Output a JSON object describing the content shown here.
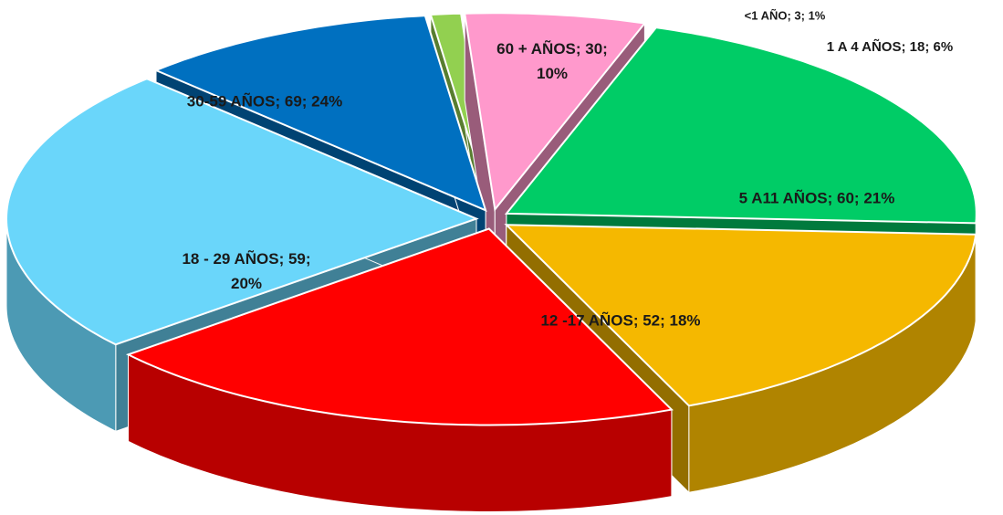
{
  "chart_data": {
    "type": "pie",
    "categories": [
      "<1 AÑO",
      "1 A 4 AÑOS",
      "5 A11 AÑOS",
      "12 -17 AÑOS",
      "18 - 29 AÑOS",
      "30-59 AÑOS",
      "60 + AÑOS"
    ],
    "values": [
      3,
      18,
      60,
      52,
      59,
      69,
      30
    ],
    "value_labels": [
      "<1 AÑO; 3; 1%",
      "1 A 4 AÑOS; 18; 6%",
      "5 A11 AÑOS; 60; 21%",
      "12 -17 AÑOS; 52; 18%",
      "18 - 29 AÑOS; 59; 20%",
      "30-59 AÑOS; 69; 24%",
      "60 + AÑOS; 30; 10%"
    ],
    "colors": [
      "#92d050",
      "#ff99cc",
      "#00cc66",
      "#f5b800",
      "#ff0000",
      "#6ad6fa",
      "#0070c0"
    ]
  }
}
